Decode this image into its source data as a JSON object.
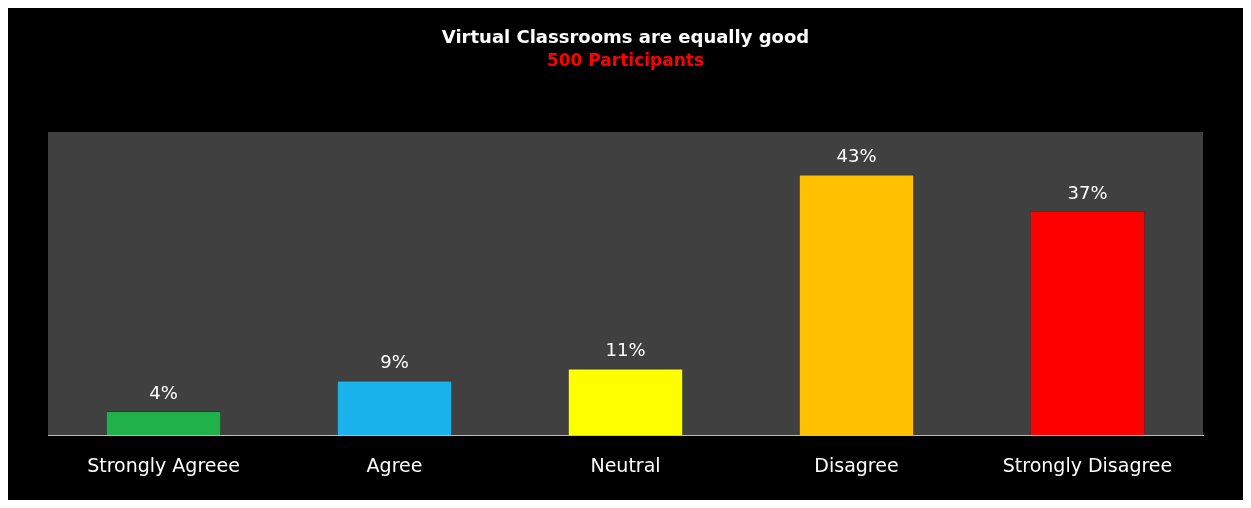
{
  "chart_data": {
    "type": "bar",
    "title": "Virtual Classrooms are equally good",
    "subtitle": "500 Participants",
    "categories": [
      "Strongly Agreee",
      "Agree",
      "Neutral",
      "Disagree",
      "Strongly Disagree"
    ],
    "values": [
      4,
      9,
      11,
      43,
      37
    ],
    "colors": [
      "#21b14b",
      "#1ab2ea",
      "#ffff00",
      "#ffc000",
      "#ff0000"
    ],
    "value_labels": [
      "4%",
      "9%",
      "11%",
      "43%",
      "37%"
    ],
    "grid": false,
    "legend": false
  }
}
